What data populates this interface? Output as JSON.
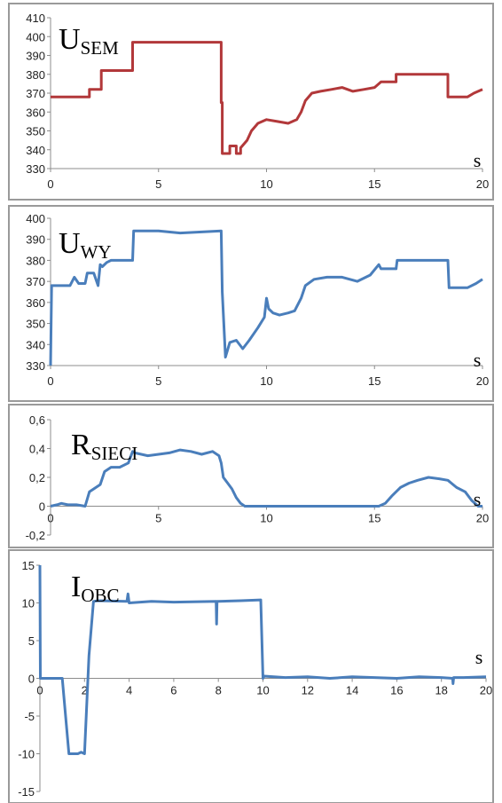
{
  "chart_data": [
    {
      "type": "line",
      "title_main": "U",
      "title_sub": "SEM",
      "x_unit": "s",
      "color": "#b2383a",
      "xlim": [
        0,
        20
      ],
      "ylim": [
        330,
        410
      ],
      "x_ticks": [
        0,
        5,
        10,
        15,
        20
      ],
      "y_ticks": [
        330,
        340,
        350,
        360,
        370,
        380,
        390,
        400,
        410
      ],
      "x_tick_labels": [
        "0",
        "5",
        "10",
        "15",
        "20"
      ],
      "y_tick_labels": [
        "330",
        "340",
        "350",
        "360",
        "370",
        "380",
        "390",
        "400",
        "410"
      ],
      "x": [
        0,
        1.8,
        1.8,
        2.35,
        2.35,
        3.8,
        3.8,
        7.9,
        7.9,
        7.95,
        7.95,
        8.3,
        8.3,
        8.6,
        8.6,
        8.8,
        8.8,
        9.1,
        9.3,
        9.6,
        10.0,
        10.5,
        11.0,
        11.4,
        11.6,
        11.8,
        12.1,
        12.5,
        13.0,
        13.5,
        14.0,
        14.5,
        15.0,
        15.3,
        15.3,
        16.0,
        16.0,
        18.4,
        18.4,
        19.3,
        19.6,
        20.0
      ],
      "y": [
        368,
        368,
        372,
        372,
        382,
        382,
        397,
        397,
        365,
        365,
        338,
        338,
        342,
        342,
        338,
        338,
        341,
        345,
        350,
        354,
        356,
        355,
        354,
        356,
        360,
        366,
        370,
        371,
        372,
        373,
        371,
        372,
        373,
        376,
        376,
        376,
        380,
        380,
        368,
        368,
        370,
        372
      ]
    },
    {
      "type": "line",
      "title_main": "U",
      "title_sub": "WY",
      "x_unit": "s",
      "color": "#4a7ebb",
      "xlim": [
        0,
        20
      ],
      "ylim": [
        330,
        400
      ],
      "x_ticks": [
        0,
        5,
        10,
        15,
        20
      ],
      "y_ticks": [
        330,
        340,
        350,
        360,
        370,
        380,
        390,
        400
      ],
      "x_tick_labels": [
        "0",
        "5",
        "10",
        "15",
        "20"
      ],
      "y_tick_labels": [
        "330",
        "340",
        "350",
        "360",
        "370",
        "380",
        "390",
        "400"
      ],
      "x": [
        0,
        0.05,
        0.1,
        0.9,
        1.1,
        1.3,
        1.6,
        1.7,
        2.0,
        2.2,
        2.3,
        2.4,
        2.6,
        2.8,
        3.8,
        3.85,
        5.0,
        6.0,
        7.9,
        7.95,
        8.1,
        8.3,
        8.6,
        8.9,
        9.2,
        9.6,
        9.9,
        10.0,
        10.1,
        10.3,
        10.6,
        11.0,
        11.3,
        11.6,
        11.8,
        12.2,
        12.8,
        13.5,
        14.2,
        14.8,
        15.2,
        15.3,
        16.0,
        16.05,
        18.4,
        18.45,
        19.3,
        19.7,
        20.0
      ],
      "y": [
        330,
        368,
        368,
        368,
        372,
        369,
        369,
        374,
        374,
        368,
        378,
        377,
        379,
        380,
        380,
        394,
        394,
        393,
        394,
        365,
        334,
        341,
        342,
        338,
        342,
        348,
        353,
        362,
        357,
        355,
        354,
        355,
        356,
        362,
        368,
        371,
        372,
        372,
        370,
        373,
        378,
        376,
        376,
        380,
        380,
        367,
        367,
        369,
        371
      ]
    },
    {
      "type": "line",
      "title_main": "R",
      "title_sub": "SIECI",
      "x_unit": "s",
      "color": "#4a7ebb",
      "xlim": [
        0,
        20
      ],
      "ylim": [
        -0.2,
        0.6
      ],
      "x_ticks": [
        0,
        5,
        10,
        15,
        20
      ],
      "y_ticks": [
        -0.2,
        0,
        0.2,
        0.4,
        0.6
      ],
      "x_tick_labels": [
        "0",
        "5",
        "10",
        "15",
        "20"
      ],
      "y_tick_labels": [
        "-0,2",
        "0",
        "0,2",
        "0,4",
        "0,6"
      ],
      "x": [
        0,
        0.3,
        0.5,
        0.8,
        1.2,
        1.6,
        1.8,
        2.0,
        2.3,
        2.5,
        2.8,
        3.2,
        3.6,
        3.8,
        3.9,
        4.5,
        5.0,
        5.5,
        6.0,
        6.5,
        7.0,
        7.5,
        7.8,
        7.9,
        8.0,
        8.2,
        8.4,
        8.6,
        8.8,
        9.0,
        10,
        12,
        14,
        15.2,
        15.5,
        15.8,
        16.2,
        16.6,
        17.0,
        17.5,
        18.0,
        18.4,
        18.8,
        19.2,
        19.5,
        19.8,
        20.0
      ],
      "y": [
        0,
        0.01,
        0.02,
        0.01,
        0.01,
        0.0,
        0.1,
        0.12,
        0.15,
        0.24,
        0.27,
        0.27,
        0.3,
        0.38,
        0.37,
        0.35,
        0.36,
        0.37,
        0.39,
        0.38,
        0.36,
        0.38,
        0.35,
        0.3,
        0.2,
        0.16,
        0.12,
        0.06,
        0.02,
        0.0,
        0.0,
        0.0,
        0.0,
        0.0,
        0.02,
        0.07,
        0.13,
        0.16,
        0.18,
        0.2,
        0.19,
        0.18,
        0.13,
        0.1,
        0.04,
        0.0,
        0.0
      ]
    },
    {
      "type": "line",
      "title_main": "I",
      "title_sub": "OBC",
      "x_unit": "s",
      "color": "#4a7ebb",
      "xlim": [
        0,
        20
      ],
      "ylim": [
        -15,
        15
      ],
      "x_ticks": [
        0,
        2,
        4,
        6,
        8,
        10,
        12,
        14,
        16,
        18,
        20
      ],
      "y_ticks": [
        -15,
        -10,
        -5,
        0,
        5,
        10,
        15
      ],
      "x_tick_labels": [
        "0",
        "2",
        "4",
        "6",
        "8",
        "10",
        "12",
        "14",
        "16",
        "18",
        "20"
      ],
      "y_tick_labels": [
        "-15",
        "-10",
        "-5",
        "0",
        "5",
        "10",
        "15"
      ],
      "x": [
        0,
        0.02,
        0.04,
        0.3,
        1.0,
        1.3,
        1.5,
        1.7,
        1.85,
        2.0,
        2.2,
        2.4,
        2.6,
        3.9,
        3.95,
        4.0,
        5.0,
        6.0,
        7.9,
        7.92,
        7.94,
        8.0,
        9.0,
        9.9,
        10.0,
        10.05,
        11.0,
        12.0,
        13.0,
        14.0,
        15.0,
        16.0,
        17.0,
        18.0,
        18.5,
        18.52,
        18.55,
        19.0,
        20.0
      ],
      "y": [
        15,
        0,
        0,
        0,
        0,
        -10,
        -10,
        -10,
        -9.8,
        -10,
        3,
        10.2,
        10.3,
        10.2,
        11.2,
        10.0,
        10.2,
        10.1,
        10.2,
        7.2,
        10.2,
        10.2,
        10.3,
        10.4,
        0,
        0.3,
        0.1,
        0.2,
        0.0,
        0.2,
        0.1,
        0.0,
        0.2,
        0.1,
        0.0,
        -0.7,
        0.1,
        0.1,
        0.2
      ]
    }
  ]
}
